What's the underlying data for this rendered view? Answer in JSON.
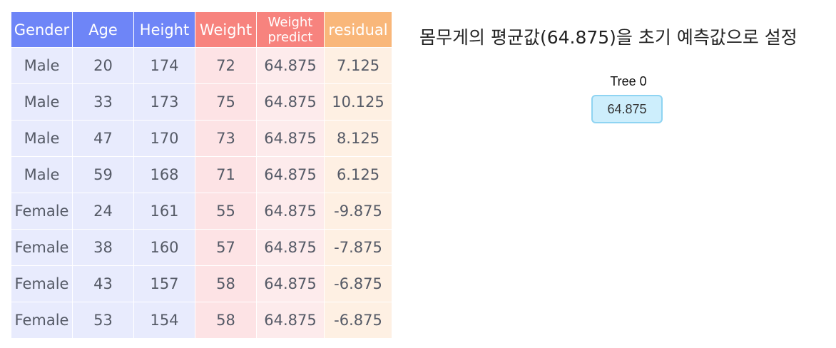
{
  "table": {
    "headers": [
      "Gender",
      "Age",
      "Height",
      "Weight",
      "Weight predict",
      "residual"
    ],
    "headers_two_line": {
      "weight_predict_line1": "Weight",
      "weight_predict_line2": "predict"
    },
    "rows": [
      [
        "Male",
        "20",
        "174",
        "72",
        "64.875",
        "7.125"
      ],
      [
        "Male",
        "33",
        "173",
        "75",
        "64.875",
        "10.125"
      ],
      [
        "Male",
        "47",
        "170",
        "73",
        "64.875",
        "8.125"
      ],
      [
        "Male",
        "59",
        "168",
        "71",
        "64.875",
        "6.125"
      ],
      [
        "Female",
        "24",
        "161",
        "55",
        "64.875",
        "-9.875"
      ],
      [
        "Female",
        "38",
        "160",
        "57",
        "64.875",
        "-7.875"
      ],
      [
        "Female",
        "43",
        "157",
        "58",
        "64.875",
        "-6.875"
      ],
      [
        "Female",
        "53",
        "154",
        "58",
        "64.875",
        "-6.875"
      ]
    ],
    "colors": {
      "feature_header": "#6e85f7",
      "target_header": "#f7837e",
      "residual_header": "#f9b77a",
      "feature_cell": "#e8ebfd",
      "target_cell": "#fde3e5",
      "residual_cell": "#fef0e3"
    }
  },
  "caption": "몸무게의 평균값(64.875)을 초기 예측값으로 설정",
  "tree": {
    "label": "Tree 0",
    "node_value": "64.875",
    "node_color": "#cdeefc",
    "node_border": "#8fd4f2"
  }
}
